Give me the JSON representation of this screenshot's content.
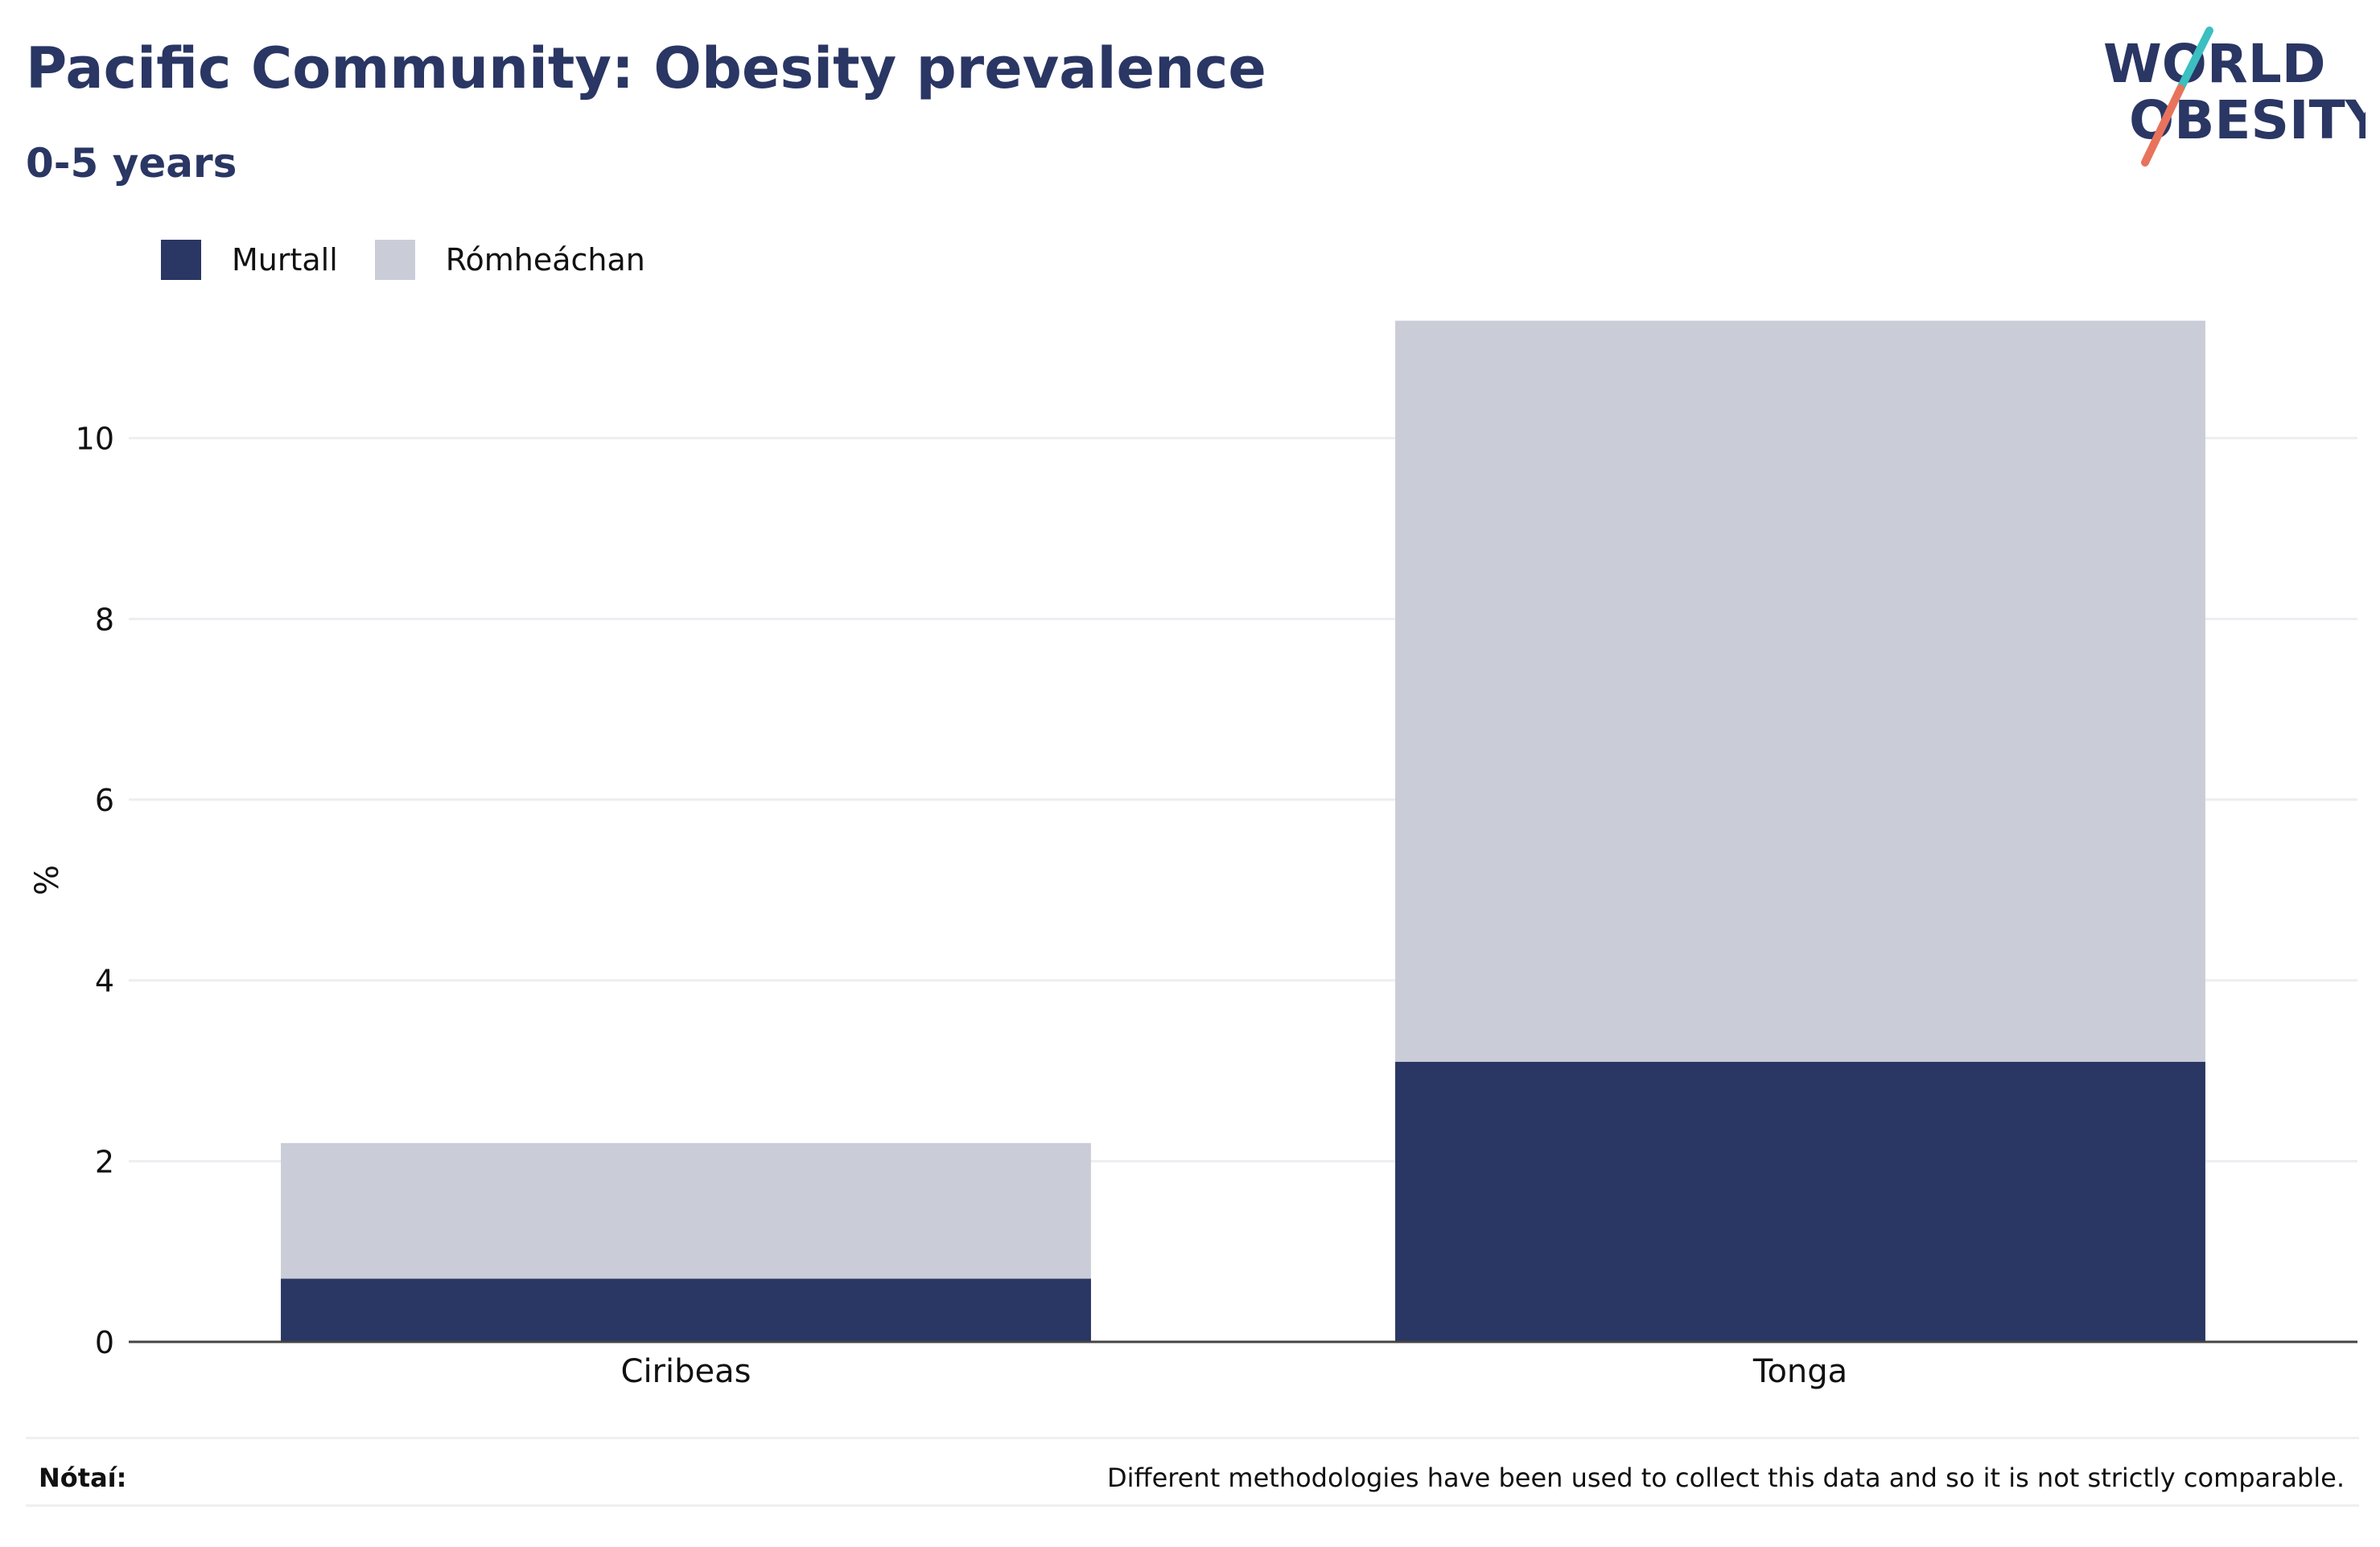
{
  "header": {
    "title": "Pacific Community: Obesity prevalence",
    "subtitle": "0-5 years"
  },
  "logo": {
    "line1": "WORLD",
    "line2": "OBESITY",
    "colors": {
      "text": "#2a3663",
      "slash_top": "#3bbfc1",
      "slash_bottom": "#e8735c"
    }
  },
  "footer": {
    "note_label": "Nótaí:",
    "note_text": "Different methodologies have been used to collect this data and so it is not strictly comparable."
  },
  "chart_data": {
    "type": "bar",
    "stacked": true,
    "categories": [
      "Ciribeas",
      "Tonga"
    ],
    "series": [
      {
        "name": "Murtall",
        "values": [
          0.7,
          3.1
        ],
        "color": "#2a3663"
      },
      {
        "name": "Rómheáchan",
        "values": [
          1.5,
          8.2
        ],
        "color": "#cacdd8"
      }
    ],
    "ylabel": "%",
    "xlabel": "",
    "ylim": [
      0,
      12
    ],
    "yticks": [
      0,
      2,
      4,
      6,
      8,
      10
    ],
    "grid": true,
    "legend_position": "top-left"
  }
}
